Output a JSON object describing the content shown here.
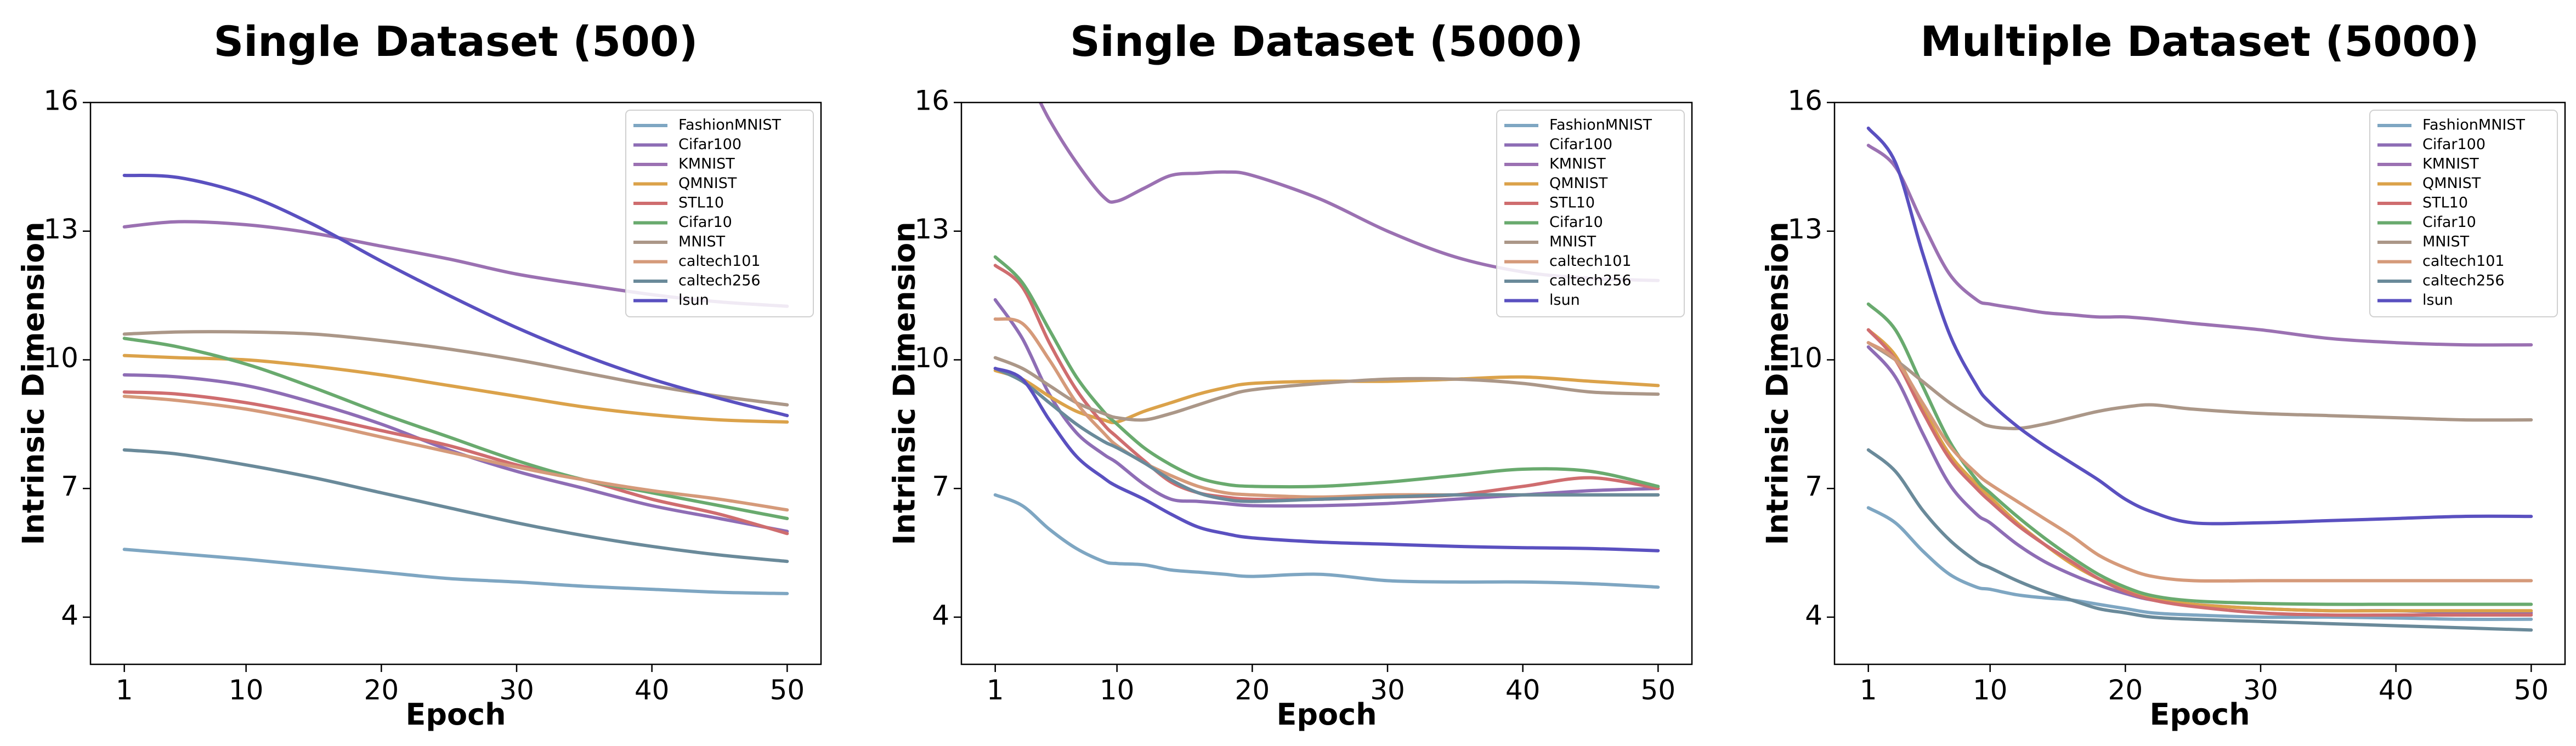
{
  "chart_data": [
    {
      "type": "line",
      "title": "Single Dataset  (500)",
      "xlabel": "Epoch",
      "ylabel": "Intrinsic Dimension",
      "xlim": [
        -1.5,
        52.5
      ],
      "ylim": [
        2.9,
        16
      ],
      "xticks": [
        1,
        10,
        20,
        30,
        40,
        50
      ],
      "yticks": [
        4,
        7,
        10,
        13,
        16
      ],
      "grid": false,
      "legend_position": "top-right",
      "x": [
        1,
        5,
        10,
        15,
        20,
        25,
        30,
        35,
        40,
        45,
        50
      ],
      "series": [
        {
          "name": "FashionMNIST",
          "color": "#7ea6c2",
          "values": [
            5.58,
            5.48,
            5.35,
            5.2,
            5.05,
            4.9,
            4.82,
            4.72,
            4.65,
            4.58,
            4.55
          ]
        },
        {
          "name": "Cifar100",
          "color": "#8e6db5",
          "values": [
            9.65,
            9.6,
            9.4,
            9.0,
            8.5,
            7.9,
            7.4,
            7.0,
            6.6,
            6.3,
            6.0
          ]
        },
        {
          "name": "KMNIST",
          "color": "#9b71b2",
          "values": [
            13.1,
            13.22,
            13.15,
            12.95,
            12.65,
            12.35,
            12.0,
            11.75,
            11.52,
            11.35,
            11.25
          ]
        },
        {
          "name": "QMNIST",
          "color": "#dba24a",
          "values": [
            10.1,
            10.05,
            10.0,
            9.85,
            9.65,
            9.4,
            9.15,
            8.9,
            8.72,
            8.6,
            8.55
          ]
        },
        {
          "name": "STL10",
          "color": "#cf6d6f",
          "values": [
            9.25,
            9.2,
            9.0,
            8.7,
            8.35,
            8.0,
            7.55,
            7.2,
            6.75,
            6.4,
            5.95
          ]
        },
        {
          "name": "Cifar10",
          "color": "#69aa6e",
          "values": [
            10.5,
            10.3,
            9.9,
            9.35,
            8.75,
            8.2,
            7.65,
            7.2,
            6.9,
            6.6,
            6.3
          ]
        },
        {
          "name": "MNIST",
          "color": "#ab9788",
          "values": [
            10.6,
            10.65,
            10.65,
            10.6,
            10.45,
            10.25,
            10.0,
            9.7,
            9.4,
            9.15,
            8.95
          ]
        },
        {
          "name": "caltech101",
          "color": "#d59a7a",
          "values": [
            9.15,
            9.05,
            8.85,
            8.55,
            8.2,
            7.85,
            7.5,
            7.2,
            6.95,
            6.75,
            6.5
          ]
        },
        {
          "name": "caltech256",
          "color": "#6a8a9a",
          "values": [
            7.9,
            7.8,
            7.55,
            7.25,
            6.9,
            6.55,
            6.2,
            5.9,
            5.65,
            5.45,
            5.3
          ]
        },
        {
          "name": "lsun",
          "color": "#5a50c0",
          "values": [
            14.3,
            14.25,
            13.85,
            13.15,
            12.3,
            11.5,
            10.75,
            10.1,
            9.55,
            9.1,
            8.7
          ]
        }
      ]
    },
    {
      "type": "line",
      "title": "Single Dataset  (5000)",
      "xlabel": "Epoch",
      "ylabel": "Intrinsic Dimension",
      "xlim": [
        -1.5,
        52.5
      ],
      "ylim": [
        2.9,
        16
      ],
      "xticks": [
        1,
        10,
        20,
        30,
        40,
        50
      ],
      "yticks": [
        4,
        7,
        10,
        13,
        16
      ],
      "grid": false,
      "legend_position": "top-right",
      "x": [
        1,
        3,
        5,
        7,
        9,
        10,
        12,
        14,
        16,
        18,
        20,
        25,
        30,
        35,
        40,
        45,
        50
      ],
      "series": [
        {
          "name": "FashionMNIST",
          "color": "#7ea6c2",
          "values": [
            6.85,
            6.6,
            6.05,
            5.6,
            5.3,
            5.25,
            5.22,
            5.1,
            5.05,
            5.0,
            4.95,
            5.0,
            4.85,
            4.82,
            4.82,
            4.78,
            4.7
          ]
        },
        {
          "name": "Cifar100",
          "color": "#8e6db5",
          "values": [
            11.4,
            10.5,
            9.2,
            8.3,
            7.8,
            7.6,
            7.1,
            6.75,
            6.7,
            6.65,
            6.6,
            6.6,
            6.65,
            6.75,
            6.85,
            6.95,
            7.0
          ]
        },
        {
          "name": "KMNIST",
          "color": "#9b71b2",
          "values": [
            17.5,
            16.8,
            15.6,
            14.6,
            13.8,
            13.7,
            14.0,
            14.3,
            14.35,
            14.38,
            14.3,
            13.75,
            13.0,
            12.4,
            12.05,
            11.9,
            11.85
          ]
        },
        {
          "name": "QMNIST",
          "color": "#dba24a",
          "values": [
            9.75,
            9.55,
            9.15,
            8.8,
            8.6,
            8.55,
            8.8,
            9.0,
            9.2,
            9.35,
            9.45,
            9.5,
            9.5,
            9.55,
            9.6,
            9.5,
            9.4
          ]
        },
        {
          "name": "STL10",
          "color": "#cf6d6f",
          "values": [
            12.2,
            11.7,
            10.4,
            9.3,
            8.5,
            8.2,
            7.65,
            7.15,
            6.9,
            6.8,
            6.75,
            6.75,
            6.8,
            6.85,
            7.05,
            7.25,
            7.0
          ]
        },
        {
          "name": "Cifar10",
          "color": "#69aa6e",
          "values": [
            12.4,
            11.8,
            10.7,
            9.6,
            8.8,
            8.5,
            7.95,
            7.55,
            7.25,
            7.1,
            7.05,
            7.05,
            7.15,
            7.3,
            7.45,
            7.4,
            7.05
          ]
        },
        {
          "name": "MNIST",
          "color": "#ab9788",
          "values": [
            10.05,
            9.8,
            9.4,
            9.0,
            8.75,
            8.65,
            8.6,
            8.75,
            8.95,
            9.15,
            9.3,
            9.45,
            9.55,
            9.55,
            9.45,
            9.25,
            9.2
          ]
        },
        {
          "name": "caltech101",
          "color": "#d59a7a",
          "values": [
            10.95,
            10.85,
            10.0,
            9.0,
            8.3,
            8.0,
            7.6,
            7.3,
            7.05,
            6.9,
            6.85,
            6.8,
            6.85,
            6.85,
            6.85,
            6.85,
            6.85
          ]
        },
        {
          "name": "caltech256",
          "color": "#6a8a9a",
          "values": [
            9.8,
            9.5,
            9.0,
            8.5,
            8.1,
            7.95,
            7.6,
            7.2,
            6.9,
            6.75,
            6.7,
            6.75,
            6.8,
            6.85,
            6.85,
            6.85,
            6.85
          ]
        },
        {
          "name": "lsun",
          "color": "#5a50c0",
          "values": [
            9.8,
            9.55,
            8.6,
            7.75,
            7.25,
            7.05,
            6.75,
            6.4,
            6.1,
            5.95,
            5.85,
            5.75,
            5.7,
            5.65,
            5.62,
            5.6,
            5.55
          ]
        }
      ]
    },
    {
      "type": "line",
      "title": "Multiple Dataset  (5000)",
      "xlabel": "Epoch",
      "ylabel": "Intrinsic Dimension",
      "xlim": [
        -1.5,
        52.5
      ],
      "ylim": [
        2.9,
        16
      ],
      "xticks": [
        1,
        10,
        20,
        30,
        40,
        50
      ],
      "yticks": [
        4,
        7,
        10,
        13,
        16
      ],
      "grid": false,
      "legend_position": "top-right",
      "x": [
        1,
        3,
        5,
        7,
        9,
        10,
        12,
        14,
        16,
        18,
        20,
        22,
        25,
        30,
        35,
        40,
        45,
        50
      ],
      "series": [
        {
          "name": "FashionMNIST",
          "color": "#7ea6c2",
          "values": [
            6.55,
            6.2,
            5.55,
            5.0,
            4.7,
            4.65,
            4.52,
            4.45,
            4.4,
            4.3,
            4.2,
            4.1,
            4.05,
            4.0,
            4.0,
            3.98,
            3.95,
            3.95
          ]
        },
        {
          "name": "Cifar100",
          "color": "#8e6db5",
          "values": [
            10.3,
            9.6,
            8.3,
            7.1,
            6.4,
            6.2,
            5.7,
            5.3,
            5.0,
            4.75,
            4.55,
            4.4,
            4.3,
            4.2,
            4.15,
            4.15,
            4.1,
            4.1
          ]
        },
        {
          "name": "KMNIST",
          "color": "#9b71b2",
          "values": [
            15.0,
            14.5,
            13.2,
            12.0,
            11.4,
            11.3,
            11.2,
            11.1,
            11.05,
            11.0,
            11.0,
            10.95,
            10.85,
            10.7,
            10.5,
            10.4,
            10.35,
            10.35
          ]
        },
        {
          "name": "QMNIST",
          "color": "#dba24a",
          "values": [
            10.7,
            10.1,
            8.9,
            7.8,
            7.1,
            6.8,
            6.2,
            5.7,
            5.25,
            4.9,
            4.65,
            4.45,
            4.3,
            4.2,
            4.15,
            4.15,
            4.15,
            4.15
          ]
        },
        {
          "name": "STL10",
          "color": "#cf6d6f",
          "values": [
            10.7,
            10.0,
            8.8,
            7.7,
            7.0,
            6.7,
            6.15,
            5.7,
            5.3,
            4.9,
            4.6,
            4.4,
            4.25,
            4.1,
            4.05,
            4.05,
            4.05,
            4.05
          ]
        },
        {
          "name": "Cifar10",
          "color": "#69aa6e",
          "values": [
            11.3,
            10.7,
            9.4,
            8.1,
            7.2,
            6.9,
            6.35,
            5.85,
            5.4,
            5.0,
            4.7,
            4.5,
            4.38,
            4.32,
            4.3,
            4.3,
            4.3,
            4.3
          ]
        },
        {
          "name": "MNIST",
          "color": "#ab9788",
          "values": [
            10.4,
            10.0,
            9.5,
            9.0,
            8.6,
            8.45,
            8.4,
            8.5,
            8.65,
            8.8,
            8.9,
            8.95,
            8.85,
            8.75,
            8.7,
            8.65,
            8.6,
            8.6
          ]
        },
        {
          "name": "caltech101",
          "color": "#d59a7a",
          "values": [
            10.4,
            10.0,
            9.0,
            8.0,
            7.35,
            7.1,
            6.7,
            6.3,
            5.9,
            5.45,
            5.15,
            4.95,
            4.85,
            4.85,
            4.85,
            4.85,
            4.85,
            4.85
          ]
        },
        {
          "name": "caltech256",
          "color": "#6a8a9a",
          "values": [
            7.9,
            7.4,
            6.5,
            5.8,
            5.3,
            5.15,
            4.85,
            4.6,
            4.4,
            4.2,
            4.1,
            4.0,
            3.95,
            3.9,
            3.85,
            3.8,
            3.75,
            3.7
          ]
        },
        {
          "name": "lsun",
          "color": "#5a50c0",
          "values": [
            15.4,
            14.6,
            12.5,
            10.6,
            9.4,
            9.0,
            8.45,
            8.0,
            7.6,
            7.2,
            6.75,
            6.45,
            6.2,
            6.2,
            6.25,
            6.3,
            6.35,
            6.35
          ]
        }
      ]
    }
  ]
}
